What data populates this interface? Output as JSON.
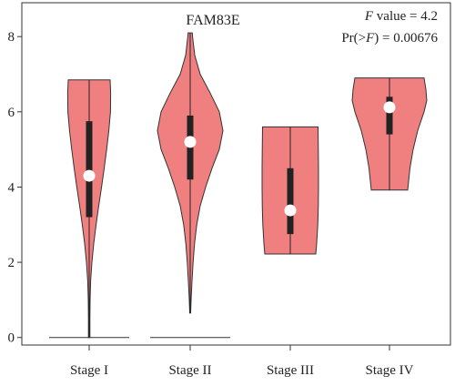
{
  "chart_data": {
    "type": "violin",
    "title": "FAM83E",
    "stats": {
      "f_label": "F",
      "f_suffix": " value = 4.2",
      "p_prefix": "Pr(>",
      "p_italic": "F",
      "p_suffix": ") = 0.00676"
    },
    "ylim": [
      -0.2,
      8.9
    ],
    "yticks": [
      0,
      2,
      4,
      6,
      8
    ],
    "categories": [
      "Stage I",
      "Stage II",
      "Stage III",
      "Stage IV"
    ],
    "violins": [
      {
        "name": "Stage I",
        "min": 0.0,
        "max": 6.85,
        "q1": 3.2,
        "q3": 5.75,
        "median": 4.3,
        "profile": [
          [
            0.0,
            0.8
          ],
          [
            0.5,
            0.8
          ],
          [
            1.0,
            1.0
          ],
          [
            1.5,
            1.6
          ],
          [
            2.0,
            3.0
          ],
          [
            2.5,
            5.0
          ],
          [
            3.0,
            7.6
          ],
          [
            3.5,
            10.5
          ],
          [
            4.0,
            13.6
          ],
          [
            4.5,
            16.5
          ],
          [
            5.0,
            19.2
          ],
          [
            5.5,
            21.6
          ],
          [
            6.0,
            23.4
          ],
          [
            6.5,
            23.6
          ],
          [
            6.85,
            23.0
          ]
        ],
        "baseline": [
          0,
          44
        ]
      },
      {
        "name": "Stage II",
        "min": 0.65,
        "max": 8.1,
        "q1": 4.2,
        "q3": 5.9,
        "median": 5.2,
        "profile": [
          [
            0.65,
            0.5
          ],
          [
            1.0,
            1.0
          ],
          [
            1.5,
            2.0
          ],
          [
            2.0,
            3.2
          ],
          [
            2.5,
            4.8
          ],
          [
            3.0,
            7.2
          ],
          [
            3.5,
            11.0
          ],
          [
            4.0,
            17.0
          ],
          [
            4.5,
            24.0
          ],
          [
            5.0,
            32.0
          ],
          [
            5.5,
            36.0
          ],
          [
            6.0,
            32.0
          ],
          [
            6.5,
            22.0
          ],
          [
            7.0,
            11.0
          ],
          [
            7.5,
            5.0
          ],
          [
            8.0,
            2.6
          ],
          [
            8.1,
            2.3
          ]
        ],
        "baseline": [
          0,
          44
        ]
      },
      {
        "name": "Stage III",
        "min": 2.22,
        "max": 5.6,
        "q1": 2.75,
        "q3": 4.5,
        "median": 3.38,
        "profile": [
          [
            2.22,
            28.0
          ],
          [
            2.5,
            29.0
          ],
          [
            3.0,
            30.2
          ],
          [
            3.5,
            30.8
          ],
          [
            4.0,
            31.0
          ],
          [
            4.5,
            31.0
          ],
          [
            5.0,
            30.8
          ],
          [
            5.6,
            30.5
          ]
        ],
        "whisker_top": 5.6
      },
      {
        "name": "Stage IV",
        "min": 3.92,
        "max": 6.9,
        "q1": 5.4,
        "q3": 6.4,
        "median": 6.12,
        "profile": [
          [
            3.92,
            20.0
          ],
          [
            4.5,
            22.5
          ],
          [
            5.0,
            26.0
          ],
          [
            5.5,
            31.0
          ],
          [
            6.0,
            38.0
          ],
          [
            6.3,
            41.0
          ],
          [
            6.6,
            40.0
          ],
          [
            6.9,
            38.0
          ]
        ]
      }
    ],
    "colors": {
      "fill": "#F08080",
      "outline": "#333333",
      "box": "#222222",
      "median_dot": "#ffffff"
    }
  }
}
